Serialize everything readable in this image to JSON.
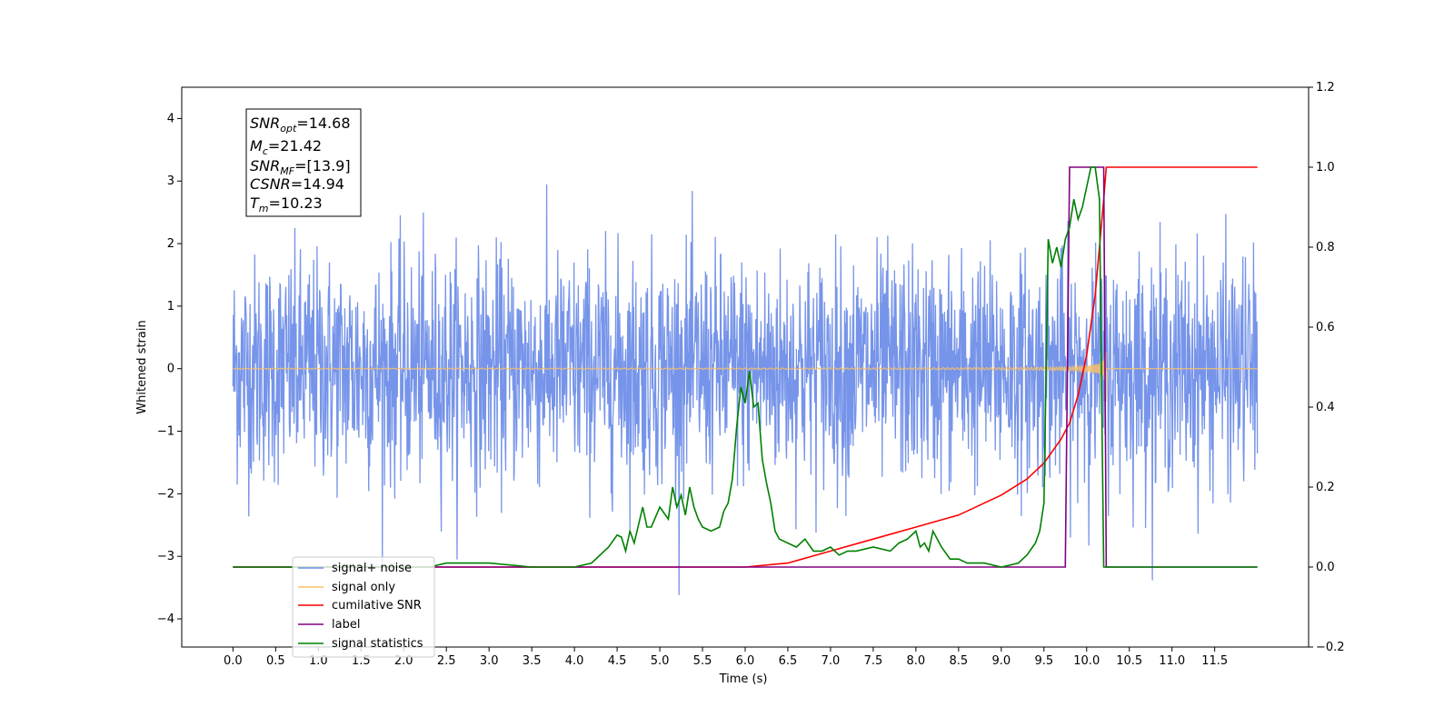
{
  "chart_data": {
    "type": "line",
    "xlabel": "Time (s)",
    "ylabel": "Whitened strain",
    "xlim": [
      -0.6,
      12.6
    ],
    "ylim_left": [
      -4.45,
      4.5
    ],
    "ylim_right": [
      -0.2,
      1.2
    ],
    "x_ticks": [
      "0.0",
      "0.5",
      "1.0",
      "1.5",
      "2.0",
      "2.5",
      "3.0",
      "3.5",
      "4.0",
      "4.5",
      "5.0",
      "5.5",
      "6.0",
      "6.5",
      "7.0",
      "7.5",
      "8.0",
      "8.5",
      "9.0",
      "9.5",
      "10.0",
      "10.5",
      "11.0",
      "11.5"
    ],
    "y_ticks_left": [
      "4",
      "3",
      "2",
      "1",
      "0",
      "−1",
      "−2",
      "−3",
      "−4"
    ],
    "y_ticks_right": [
      "1.2",
      "1.0",
      "0.8",
      "0.6",
      "0.4",
      "0.2",
      "0.0",
      "−0.2"
    ],
    "legend_position": "lower-left",
    "stats_box": {
      "snr_opt": {
        "base": "SNR",
        "sub": "opt",
        "value": "=14.68"
      },
      "mc": {
        "base": "M",
        "sub": "c",
        "value": "=21.42"
      },
      "snr_mf": {
        "base": "SNR",
        "sub": "MF",
        "value": "=[13.9]"
      },
      "csnr": {
        "base": "CSNR",
        "sub": "",
        "value": "=14.94"
      },
      "tm": {
        "base": "T",
        "sub": "m",
        "value": "=10.23"
      }
    },
    "series": [
      {
        "name": "signal+ noise",
        "color": "#6f8ee8",
        "axis": "left",
        "description_range": [
          -2.5,
          2.5
        ],
        "x_range": [
          0.0,
          12.0
        ]
      },
      {
        "name": "signal only",
        "color": "#f5c06c",
        "axis": "left",
        "chirp_end": 10.23
      },
      {
        "name": "cumilative SNR",
        "color": "#ff0000",
        "axis": "right",
        "x": [
          0.0,
          6.0,
          6.5,
          7.0,
          7.5,
          8.0,
          8.5,
          9.0,
          9.3,
          9.5,
          9.7,
          9.8,
          9.9,
          10.0,
          10.1,
          10.15,
          10.2,
          10.23,
          12.0
        ],
        "values": [
          0.0,
          0.0,
          0.01,
          0.04,
          0.07,
          0.1,
          0.13,
          0.18,
          0.22,
          0.26,
          0.32,
          0.36,
          0.43,
          0.53,
          0.68,
          0.8,
          0.92,
          1.0,
          1.0
        ]
      },
      {
        "name": "label",
        "color": "#800080",
        "axis": "right",
        "x": [
          0.0,
          9.75,
          9.8,
          10.2,
          10.23,
          12.0
        ],
        "values": [
          0.0,
          0.0,
          1.0,
          1.0,
          0.0,
          0.0
        ]
      },
      {
        "name": "signal statistics",
        "color": "#008000",
        "axis": "right",
        "x": [
          0.0,
          2.3,
          2.5,
          2.8,
          3.0,
          3.5,
          4.0,
          4.2,
          4.4,
          4.5,
          4.55,
          4.6,
          4.65,
          4.7,
          4.8,
          4.85,
          4.9,
          5.0,
          5.1,
          5.15,
          5.2,
          5.25,
          5.3,
          5.35,
          5.4,
          5.45,
          5.5,
          5.6,
          5.7,
          5.75,
          5.8,
          5.85,
          5.9,
          5.95,
          6.0,
          6.05,
          6.1,
          6.15,
          6.2,
          6.25,
          6.3,
          6.35,
          6.4,
          6.5,
          6.6,
          6.7,
          6.8,
          6.9,
          7.0,
          7.1,
          7.2,
          7.3,
          7.5,
          7.7,
          7.8,
          7.9,
          8.0,
          8.05,
          8.1,
          8.15,
          8.2,
          8.3,
          8.4,
          8.5,
          8.6,
          8.8,
          9.0,
          9.2,
          9.3,
          9.4,
          9.45,
          9.5,
          9.55,
          9.6,
          9.65,
          9.7,
          9.75,
          9.8,
          9.85,
          9.9,
          9.95,
          10.0,
          10.05,
          10.1,
          10.15,
          10.18,
          10.2,
          10.23,
          10.3,
          12.0
        ],
        "values": [
          0.0,
          0.0,
          0.01,
          0.01,
          0.01,
          0.0,
          0.0,
          0.01,
          0.05,
          0.08,
          0.075,
          0.04,
          0.09,
          0.06,
          0.15,
          0.1,
          0.1,
          0.15,
          0.12,
          0.2,
          0.15,
          0.18,
          0.13,
          0.2,
          0.15,
          0.12,
          0.1,
          0.09,
          0.1,
          0.14,
          0.16,
          0.22,
          0.35,
          0.45,
          0.41,
          0.49,
          0.4,
          0.41,
          0.27,
          0.21,
          0.16,
          0.09,
          0.07,
          0.06,
          0.05,
          0.07,
          0.04,
          0.04,
          0.05,
          0.03,
          0.04,
          0.04,
          0.05,
          0.04,
          0.06,
          0.07,
          0.09,
          0.05,
          0.06,
          0.04,
          0.09,
          0.05,
          0.02,
          0.02,
          0.01,
          0.01,
          0.0,
          0.01,
          0.03,
          0.06,
          0.09,
          0.16,
          0.82,
          0.76,
          0.8,
          0.75,
          0.82,
          0.85,
          0.92,
          0.87,
          0.9,
          0.95,
          1.0,
          1.0,
          0.92,
          0.35,
          0.0,
          0.0,
          0.0,
          0.0
        ]
      }
    ]
  }
}
